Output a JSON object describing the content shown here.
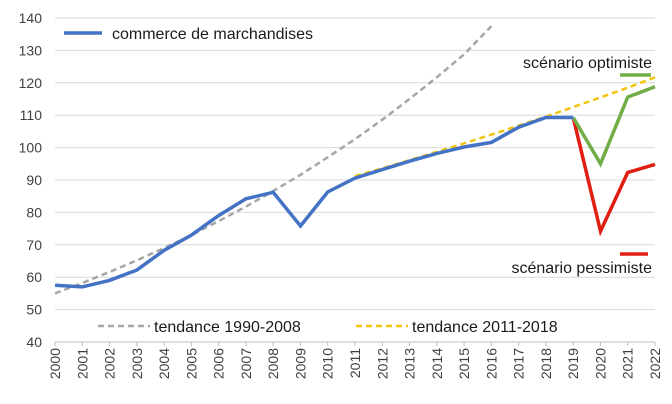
{
  "chart_data": {
    "type": "line",
    "x": [
      2000,
      2001,
      2002,
      2003,
      2004,
      2005,
      2006,
      2007,
      2008,
      2009,
      2010,
      2011,
      2012,
      2013,
      2014,
      2015,
      2016,
      2017,
      2018,
      2019,
      2020,
      2021,
      2022
    ],
    "ylim": [
      40,
      140
    ],
    "yticks": [
      40,
      50,
      60,
      70,
      80,
      90,
      100,
      110,
      120,
      130,
      140
    ],
    "grid": "horizontal",
    "series": [
      {
        "name": "commerce de marchandises",
        "color": "#4472c4",
        "style": "solid",
        "points": [
          [
            2000,
            57.5
          ],
          [
            2001,
            57
          ],
          [
            2002,
            59
          ],
          [
            2003,
            62.2
          ],
          [
            2004,
            68.3
          ],
          [
            2005,
            73
          ],
          [
            2006,
            79
          ],
          [
            2007,
            84.2
          ],
          [
            2008,
            86.2
          ],
          [
            2009,
            75.8
          ],
          [
            2010,
            86.3
          ],
          [
            2011,
            90.6
          ],
          [
            2012,
            93.2
          ],
          [
            2013,
            95.8
          ],
          [
            2014,
            98.2
          ],
          [
            2015,
            100.2
          ],
          [
            2016,
            101.6
          ],
          [
            2017,
            106.3
          ],
          [
            2018,
            109.3
          ],
          [
            2019,
            109.3
          ]
        ]
      },
      {
        "name": "tendance 1990-2008",
        "color": "#a6a6a6",
        "style": "dashed",
        "points": [
          [
            2000,
            55
          ],
          [
            2001,
            58.2
          ],
          [
            2002,
            61.6
          ],
          [
            2003,
            65.2
          ],
          [
            2004,
            69
          ],
          [
            2005,
            73
          ],
          [
            2006,
            77.3
          ],
          [
            2007,
            81.8
          ],
          [
            2008,
            86.6
          ],
          [
            2009,
            91.6
          ],
          [
            2010,
            97
          ],
          [
            2011,
            102.6
          ],
          [
            2012,
            108.6
          ],
          [
            2013,
            115
          ],
          [
            2014,
            121.7
          ],
          [
            2015,
            128.8
          ],
          [
            2016,
            137.5
          ]
        ]
      },
      {
        "name": "tendance 2011-2018",
        "color": "#f2c40f",
        "style": "dashed",
        "points": [
          [
            2011,
            91.2
          ],
          [
            2012,
            93.6
          ],
          [
            2013,
            96.1
          ],
          [
            2014,
            98.7
          ],
          [
            2015,
            101.3
          ],
          [
            2016,
            104
          ],
          [
            2017,
            106.8
          ],
          [
            2018,
            109.6
          ],
          [
            2019,
            112.5
          ],
          [
            2020,
            115.5
          ],
          [
            2021,
            118.5
          ],
          [
            2022,
            121.7
          ]
        ]
      },
      {
        "name": "scénario optimiste",
        "color": "#70ad47",
        "style": "solid",
        "points": [
          [
            2019,
            109.3
          ],
          [
            2020,
            95
          ],
          [
            2021,
            115.6
          ],
          [
            2022,
            118.8
          ]
        ]
      },
      {
        "name": "scénario pessimiste",
        "color": "#e01e12",
        "style": "solid",
        "points": [
          [
            2019,
            109.3
          ],
          [
            2020,
            74.2
          ],
          [
            2021,
            92.3
          ],
          [
            2022,
            94.8
          ]
        ]
      }
    ],
    "legend": {
      "main": "commerce de marchandises",
      "trend1": "tendance 1990-2008",
      "trend2": "tendance 2011-2018",
      "optimistic": "scénario optimiste",
      "pessimistic": "scénario pessimiste"
    }
  }
}
